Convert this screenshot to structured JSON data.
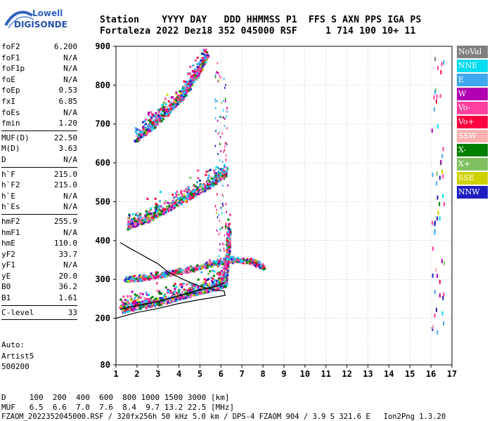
{
  "logo": {
    "line1": "Lowell",
    "line2": "DIGISONDE"
  },
  "header": {
    "columns_line": "Station    YYYY DAY   DDD HHMMSS P1  FFS S AXN PPS IGA PS",
    "values_line": "Fortaleza 2022 Dez18 352 045000 RSF     1 714 100 10+ 11"
  },
  "params": [
    {
      "name": "foF2",
      "value": "6.200"
    },
    {
      "name": "foF1",
      "value": "N/A"
    },
    {
      "name": "foF1p",
      "value": "N/A"
    },
    {
      "name": "foE",
      "value": "N/A"
    },
    {
      "name": "foEp",
      "value": "0.53"
    },
    {
      "name": "fxI",
      "value": "6.85"
    },
    {
      "name": "foEs",
      "value": "N/A"
    },
    {
      "name": "fmin",
      "value": "1.20"
    },
    {
      "sep": true
    },
    {
      "name": "MUF(D)",
      "value": "22.50"
    },
    {
      "name": "M(D)",
      "value": "3.63"
    },
    {
      "name": "D",
      "value": "N/A"
    },
    {
      "sep": true
    },
    {
      "name": "h`F",
      "value": "215.0"
    },
    {
      "name": "h`F2",
      "value": "215.0"
    },
    {
      "name": "h`E",
      "value": "N/A"
    },
    {
      "name": "h`Es",
      "value": "N/A"
    },
    {
      "sep": true
    },
    {
      "name": "hmF2",
      "value": "255.9"
    },
    {
      "name": "hmF1",
      "value": "N/A"
    },
    {
      "name": "hmE",
      "value": "110.0"
    },
    {
      "name": "yF2",
      "value": "33.7"
    },
    {
      "name": "yF1",
      "value": "N/A"
    },
    {
      "name": "yE",
      "value": "20.0"
    },
    {
      "name": "B0",
      "value": "36.2"
    },
    {
      "name": "B1",
      "value": "1.61"
    },
    {
      "sep": true
    },
    {
      "name": "C-level",
      "value": "33"
    },
    {
      "sep": true
    }
  ],
  "auto": {
    "line1": "Auto:",
    "line2": "Artist5",
    "line3": "500200"
  },
  "legend": [
    {
      "label": "NoVal",
      "color": "#808080"
    },
    {
      "label": "NNE",
      "color": "#00dcf0"
    },
    {
      "label": "E",
      "color": "#40a8f0"
    },
    {
      "label": "W",
      "color": "#b000b0"
    },
    {
      "label": "Vo-",
      "color": "#ff40a0"
    },
    {
      "label": "Vo+",
      "color": "#ff0040"
    },
    {
      "label": "SSW",
      "color": "#ffb0b0"
    },
    {
      "label": "X-",
      "color": "#008000"
    },
    {
      "label": "X+",
      "color": "#80c060"
    },
    {
      "label": "SSE",
      "color": "#d0d000"
    },
    {
      "label": "NNW",
      "color": "#2020c0"
    }
  ],
  "footer": {
    "line1": "D     100  200  400  600  800 1000 1500 3000 [km]",
    "line2": "MUF   6.5  6.6  7.0  7.6  8.4  9.7 13.2 22.5 [MHz]",
    "line3": "FZAOM_2022352045000.RSF / 320fx256h 50 kHz 5.0 km / DPS-4 FZAOM 904 / 3.9 S 321.6 E   Ion2Png 1.3.20"
  },
  "chart_data": {
    "type": "scatter",
    "x_ticks": [
      "1",
      "2",
      "3",
      "4",
      "5",
      "6",
      "7",
      "8",
      "9",
      "10",
      "11",
      "12",
      "13",
      "14",
      "15",
      "16",
      "17"
    ],
    "y_ticks": [
      "80",
      "200",
      "300",
      "400",
      "500",
      "600",
      "700",
      "800",
      "900"
    ],
    "xlim": [
      1,
      17
    ],
    "ylim": [
      80,
      900
    ],
    "grid": true,
    "traces": [
      {
        "name": "F2 ordinary",
        "points": [
          [
            1.2,
            215
          ],
          [
            2.0,
            225
          ],
          [
            3.0,
            235
          ],
          [
            4.0,
            250
          ],
          [
            5.0,
            265
          ],
          [
            5.8,
            275
          ],
          [
            6.15,
            283
          ],
          [
            6.2,
            310
          ],
          [
            6.3,
            360
          ],
          [
            6.35,
            420
          ]
        ]
      },
      {
        "name": "F2 second hop",
        "points": [
          [
            1.5,
            430
          ],
          [
            2.5,
            450
          ],
          [
            3.5,
            480
          ],
          [
            4.5,
            510
          ],
          [
            5.5,
            540
          ],
          [
            6.2,
            570
          ]
        ]
      },
      {
        "name": "F2 third hop",
        "points": [
          [
            1.9,
            655
          ],
          [
            2.7,
            690
          ],
          [
            3.5,
            730
          ],
          [
            4.2,
            770
          ],
          [
            4.8,
            820
          ],
          [
            5.3,
            870
          ]
        ]
      },
      {
        "name": "F2 extraordinary",
        "points": [
          [
            1.4,
            300
          ],
          [
            2.5,
            305
          ],
          [
            3.5,
            315
          ],
          [
            4.5,
            325
          ],
          [
            5.5,
            340
          ],
          [
            6.5,
            350
          ],
          [
            7.5,
            345
          ],
          [
            8.0,
            330
          ]
        ]
      }
    ],
    "profile_line": [
      [
        1.0,
        200
      ],
      [
        2.0,
        215
      ],
      [
        3.0,
        225
      ],
      [
        4.0,
        238
      ],
      [
        5.0,
        248
      ],
      [
        5.8,
        255
      ],
      [
        6.2,
        259
      ],
      [
        6.15,
        270
      ],
      [
        5.8,
        272
      ],
      [
        5.0,
        282
      ],
      [
        4.2,
        300
      ],
      [
        3.5,
        318
      ],
      [
        3.0,
        340
      ],
      [
        2.5,
        355
      ],
      [
        2.0,
        370
      ],
      [
        1.6,
        382
      ],
      [
        1.2,
        395
      ]
    ],
    "right_markers_x": [
      16.1,
      16.3,
      16.5
    ]
  }
}
